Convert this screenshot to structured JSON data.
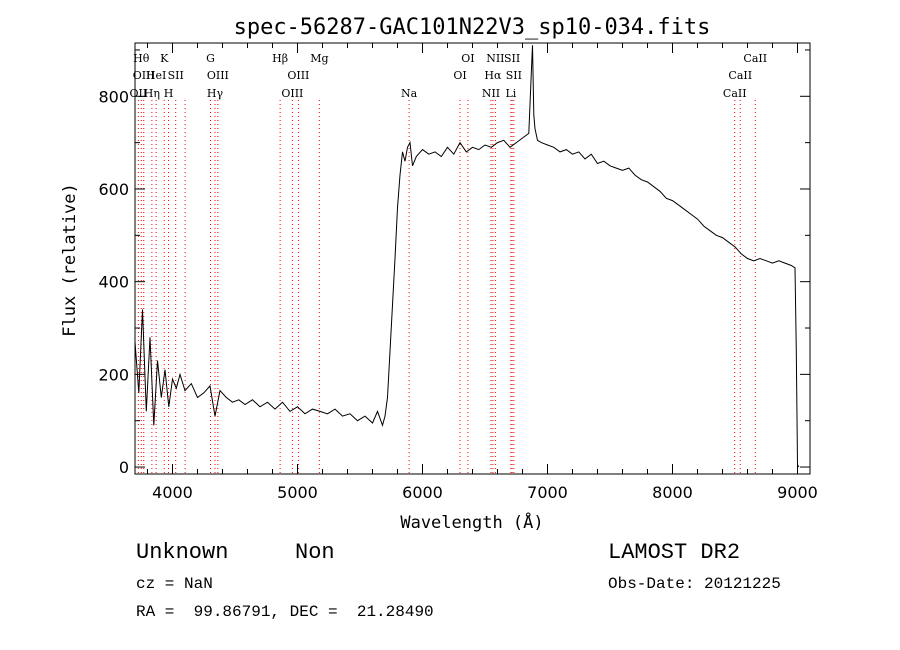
{
  "chart_data": {
    "type": "line",
    "title": "spec-56287-GAC101N22V3_sp10-034.fits",
    "xlabel": "Wavelength (Å)",
    "ylabel": "Flux (relative)",
    "xlim": [
      3700,
      9100
    ],
    "ylim": [
      -15,
      915
    ],
    "xticks": [
      4000,
      5000,
      6000,
      7000,
      8000,
      9000
    ],
    "yticks": [
      0,
      200,
      400,
      600,
      800
    ],
    "grid": false,
    "line_color": "#000000",
    "marker_color": "#ff0000",
    "series": [
      {
        "x": [
          3700,
          3730,
          3760,
          3790,
          3820,
          3850,
          3880,
          3910,
          3940,
          3970,
          4000,
          4030,
          4060,
          4100,
          4150,
          4200,
          4250,
          4300,
          4340,
          4380,
          4430,
          4480,
          4530,
          4580,
          4640,
          4700,
          4760,
          4820,
          4880,
          4940,
          5000,
          5060,
          5120,
          5180,
          5240,
          5300,
          5360,
          5420,
          5480,
          5540,
          5600,
          5640,
          5680,
          5700,
          5720,
          5740,
          5760,
          5780,
          5800,
          5820,
          5840,
          5860,
          5880,
          5900,
          5920,
          5950,
          6000,
          6050,
          6100,
          6150,
          6200,
          6250,
          6300,
          6350,
          6400,
          6450,
          6500,
          6550,
          6600,
          6650,
          6700,
          6750,
          6800,
          6850,
          6870,
          6880,
          6890,
          6900,
          6920,
          6950,
          7000,
          7050,
          7100,
          7150,
          7200,
          7250,
          7300,
          7350,
          7400,
          7450,
          7500,
          7550,
          7600,
          7650,
          7700,
          7750,
          7800,
          7850,
          7900,
          7950,
          8000,
          8050,
          8100,
          8150,
          8200,
          8250,
          8300,
          8350,
          8400,
          8450,
          8500,
          8550,
          8600,
          8650,
          8700,
          8750,
          8800,
          8850,
          8900,
          8950,
          8980,
          8990,
          9000,
          9010
        ],
        "y": [
          270,
          160,
          340,
          120,
          280,
          90,
          230,
          150,
          210,
          130,
          190,
          170,
          200,
          165,
          180,
          150,
          160,
          175,
          110,
          165,
          150,
          140,
          145,
          135,
          145,
          130,
          140,
          125,
          140,
          120,
          130,
          115,
          125,
          120,
          115,
          125,
          110,
          115,
          100,
          110,
          95,
          120,
          90,
          110,
          150,
          250,
          350,
          450,
          560,
          630,
          680,
          660,
          690,
          700,
          650,
          670,
          685,
          675,
          680,
          670,
          690,
          675,
          700,
          680,
          690,
          685,
          695,
          690,
          700,
          705,
          690,
          700,
          710,
          720,
          850,
          910,
          760,
          730,
          705,
          700,
          695,
          690,
          680,
          685,
          675,
          680,
          665,
          675,
          655,
          660,
          650,
          645,
          640,
          645,
          630,
          620,
          615,
          605,
          595,
          580,
          575,
          565,
          555,
          545,
          535,
          520,
          510,
          500,
          495,
          485,
          475,
          460,
          450,
          445,
          450,
          445,
          440,
          445,
          440,
          435,
          430,
          250,
          5,
          0
        ]
      }
    ],
    "line_markers": [
      {
        "x": 3727,
        "label": "OII",
        "row": 2
      },
      {
        "x": 3750,
        "label": "Hθ",
        "row": 0
      },
      {
        "x": 3770,
        "label": "OIII",
        "row": 1
      },
      {
        "x": 3835,
        "label": "Hη",
        "row": 2
      },
      {
        "x": 3869,
        "label": "HeI",
        "row": 1
      },
      {
        "x": 3934,
        "label": "K",
        "row": 0
      },
      {
        "x": 3968,
        "label": "H",
        "row": 2
      },
      {
        "x": 4026,
        "label": "SII",
        "row": 1
      },
      {
        "x": 4101,
        "label": "",
        "row": 0
      },
      {
        "x": 4304,
        "label": "G",
        "row": 0
      },
      {
        "x": 4340,
        "label": "Hγ",
        "row": 2
      },
      {
        "x": 4363,
        "label": "OIII",
        "row": 1
      },
      {
        "x": 4861,
        "label": "Hβ",
        "row": 0
      },
      {
        "x": 4959,
        "label": "OIII",
        "row": 2
      },
      {
        "x": 5007,
        "label": "OIII",
        "row": 1
      },
      {
        "x": 5175,
        "label": "Mg",
        "row": 0
      },
      {
        "x": 5893,
        "label": "Na",
        "row": 2
      },
      {
        "x": 6300,
        "label": "OI",
        "row": 1
      },
      {
        "x": 6363,
        "label": "OI",
        "row": 0
      },
      {
        "x": 6548,
        "label": "NII",
        "row": 2
      },
      {
        "x": 6563,
        "label": "Hα",
        "row": 1
      },
      {
        "x": 6583,
        "label": "NII",
        "row": 0
      },
      {
        "x": 6707,
        "label": "Li",
        "row": 2
      },
      {
        "x": 6717,
        "label": "SII",
        "row": 0
      },
      {
        "x": 6731,
        "label": "SII",
        "row": 1
      },
      {
        "x": 8498,
        "label": "CaII",
        "row": 2
      },
      {
        "x": 8542,
        "label": "CaII",
        "row": 1
      },
      {
        "x": 8662,
        "label": "CaII",
        "row": 0
      }
    ]
  },
  "info": {
    "class_label": "Unknown",
    "subclass_label": "Non",
    "cz_label": "cz = NaN",
    "radec_label": "RA =  99.86791, DEC =  21.28490",
    "survey_label": "LAMOST DR2",
    "obsdate_label": "Obs-Date: 20121225"
  }
}
